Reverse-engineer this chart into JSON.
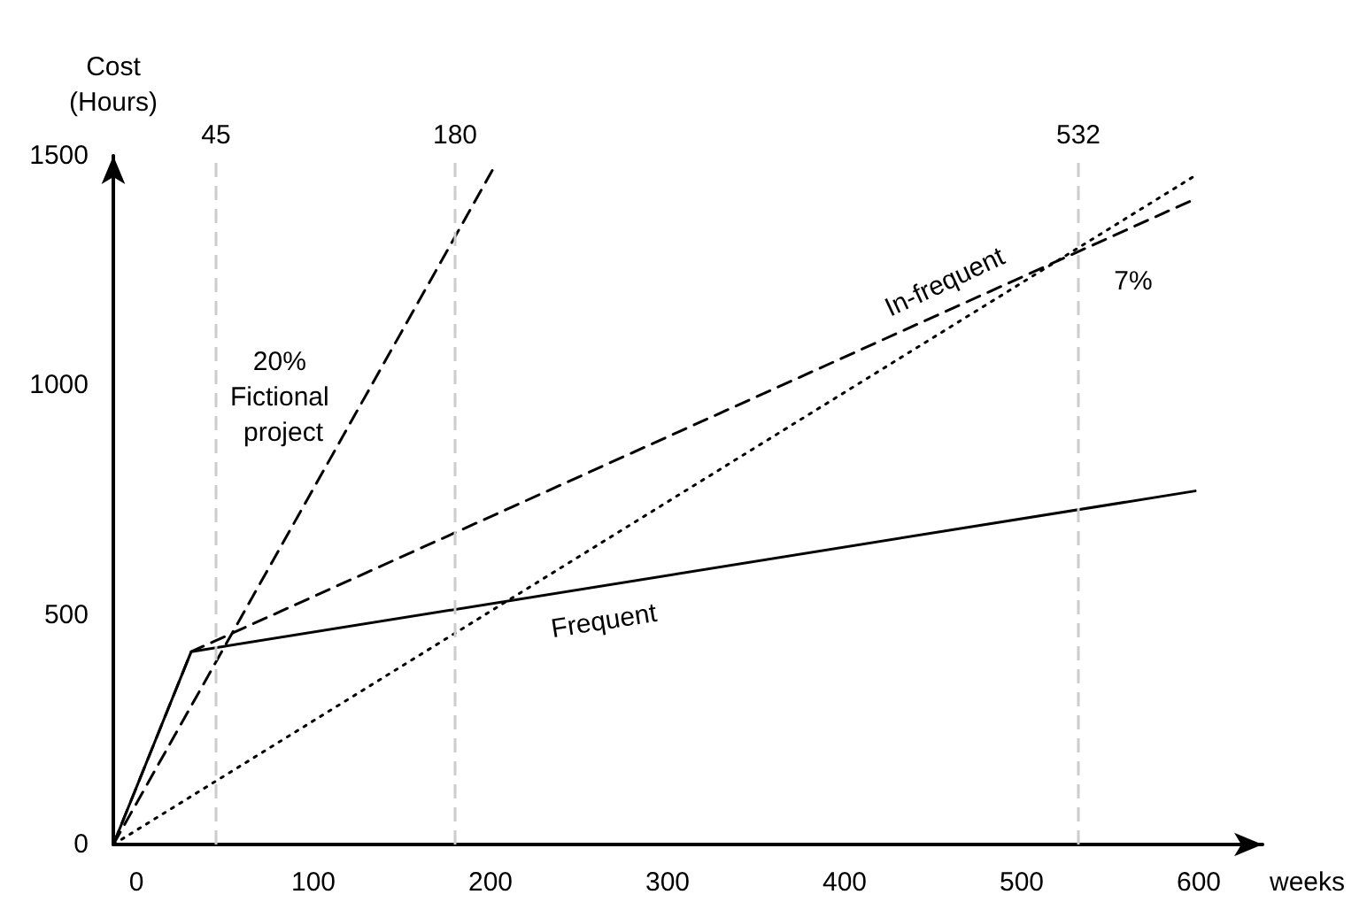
{
  "chart_data": {
    "type": "line",
    "xlabel": "weeks",
    "ylabel": "Cost\n(Hours)",
    "xlim": [
      -13,
      636
    ],
    "ylim": [
      0,
      1500
    ],
    "xticks": [
      0,
      100,
      200,
      300,
      400,
      500,
      600
    ],
    "yticks": [
      0,
      500,
      1000,
      1500
    ],
    "grid": false,
    "legend": false,
    "marker": "none",
    "series": [
      {
        "name": "Frequent",
        "color": "#000000",
        "line_style": "solid",
        "x": [
          -13,
          31,
          598
        ],
        "values": [
          0,
          420,
          770
        ]
      },
      {
        "name": "In-frequent",
        "color": "#000000",
        "line_style": "dashed",
        "x": [
          -13,
          31,
          595
        ],
        "values": [
          0,
          420,
          1401
        ]
      },
      {
        "name": "20% Fictional project",
        "color": "#000000",
        "line_style": "dashed",
        "x": [
          -13,
          201
        ],
        "values": [
          0,
          1468
        ]
      },
      {
        "name": "7%",
        "color": "#000000",
        "line_style": "dotted",
        "x": [
          -13,
          598
        ],
        "values": [
          0,
          1457
        ]
      }
    ],
    "ref_lines": [
      {
        "axis": "x",
        "value": 45,
        "label": "45",
        "color": "#cccccc",
        "line_style": "dashed"
      },
      {
        "axis": "x",
        "value": 180,
        "label": "180",
        "color": "#cccccc",
        "line_style": "dashed"
      },
      {
        "axis": "x",
        "value": 532,
        "label": "532",
        "color": "#cccccc",
        "line_style": "dashed"
      }
    ]
  }
}
